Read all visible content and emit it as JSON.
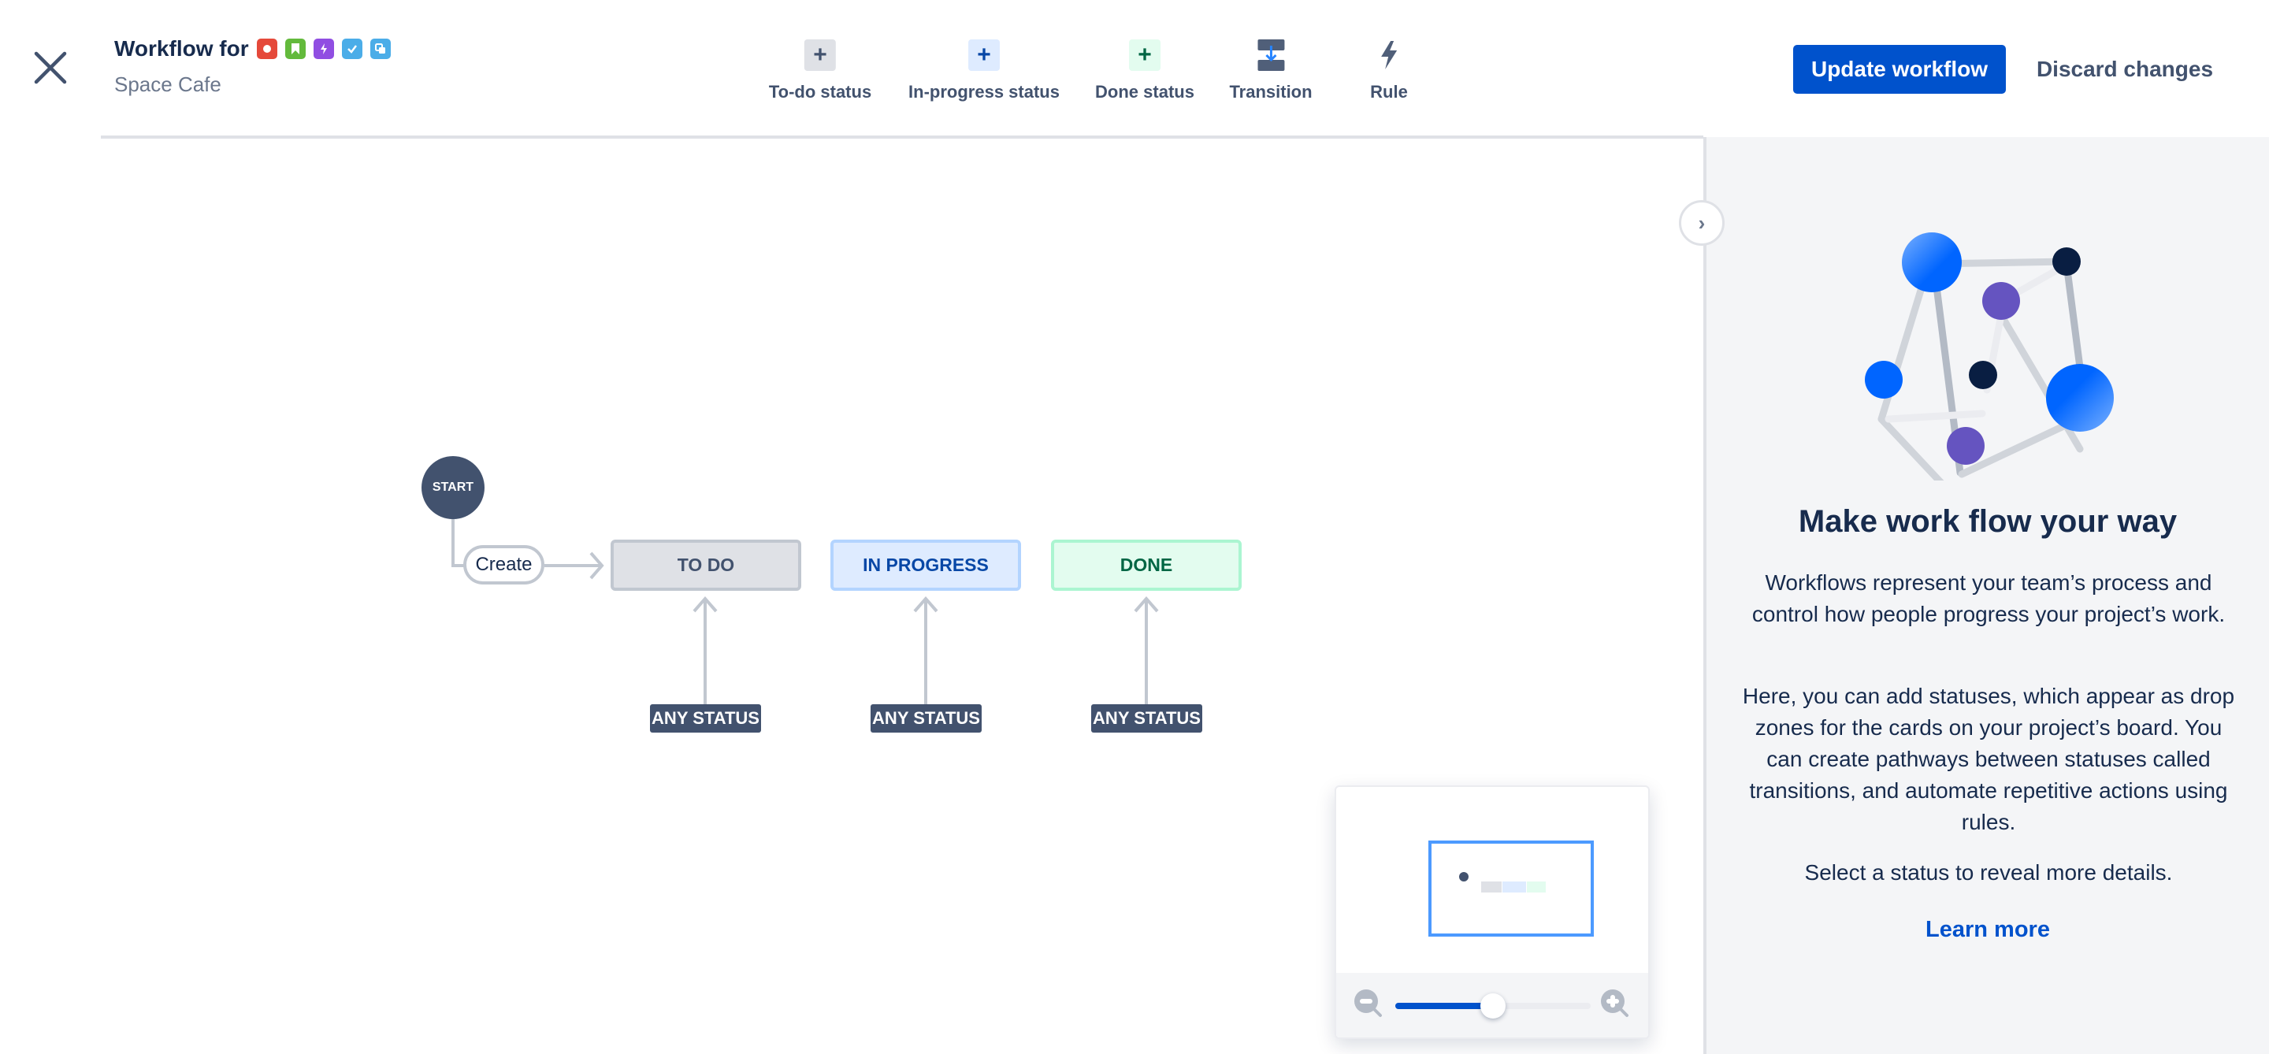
{
  "header": {
    "title": "Workflow for",
    "project_name": "Space Cafe",
    "issue_type_icons": [
      {
        "name": "bug-icon",
        "color": "#E5493A"
      },
      {
        "name": "story-icon",
        "color": "#63BA3C"
      },
      {
        "name": "epic-icon",
        "color": "#904EE2"
      },
      {
        "name": "task-icon",
        "color": "#4BADE8"
      },
      {
        "name": "subtask-icon",
        "color": "#4BADE8"
      }
    ],
    "toolbar": [
      {
        "label": "To-do status",
        "icon": "plus-icon"
      },
      {
        "label": "In-progress status",
        "icon": "plus-icon"
      },
      {
        "label": "Done status",
        "icon": "plus-icon"
      },
      {
        "label": "Transition",
        "icon": "transition-icon"
      },
      {
        "label": "Rule",
        "icon": "lightning-icon"
      }
    ],
    "update_label": "Update workflow",
    "discard_label": "Discard changes"
  },
  "diagram": {
    "start_label": "START",
    "create_label": "Create",
    "statuses": [
      {
        "label": "TO DO",
        "bg": "#DFE1E6",
        "border": "#C1C7D0",
        "color": "#42526E"
      },
      {
        "label": "IN PROGRESS",
        "bg": "#DEEBFF",
        "border": "#B3D4FF",
        "color": "#0747A6"
      },
      {
        "label": "DONE",
        "bg": "#E3FCEF",
        "border": "#ABF5D1",
        "color": "#006644"
      }
    ],
    "any_status_label": "ANY STATUS"
  },
  "minimap": {
    "zoom_percent": 50
  },
  "panel": {
    "title": "Make work flow your way",
    "paragraphs": [
      "Workflows represent your team’s process and control how people progress your project’s work.",
      "Here, you can add statuses, which appear as drop zones for the cards on your project’s board. You can create pathways between statuses called transitions, and automate repetitive actions using rules.",
      "Select a status to reveal more details."
    ],
    "learn_more": "Learn more"
  }
}
